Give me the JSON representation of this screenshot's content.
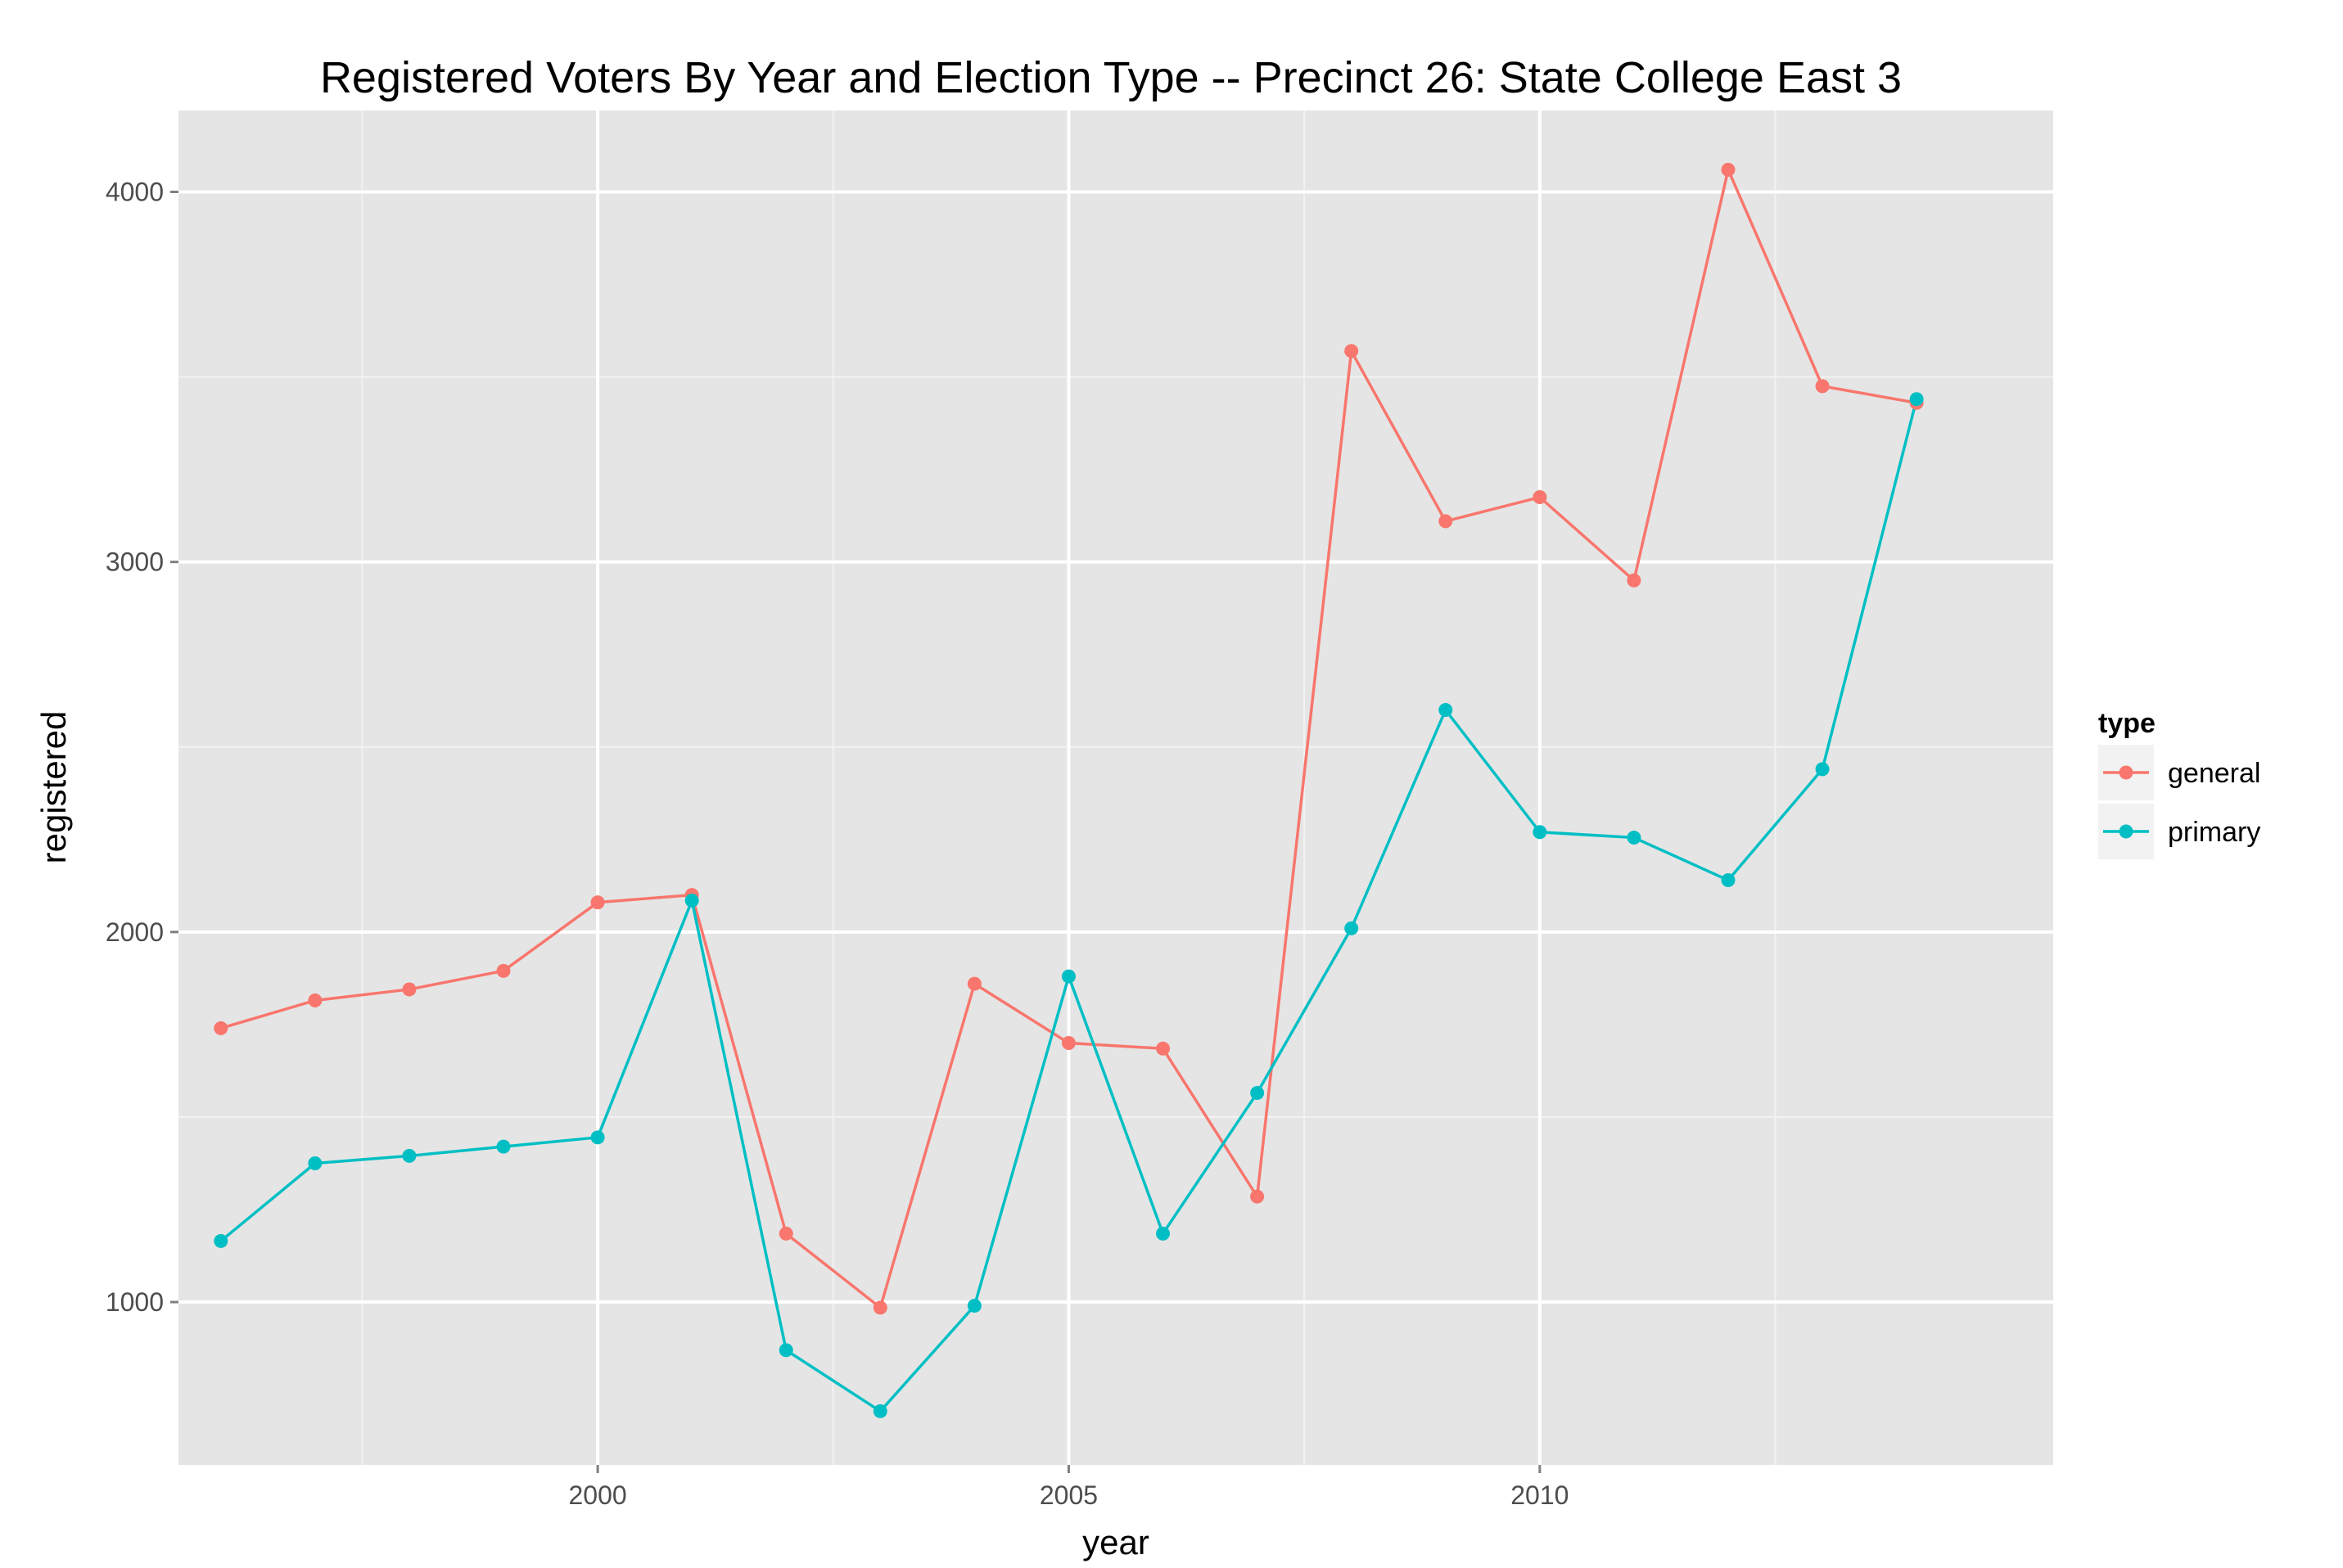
{
  "chart_data": {
    "type": "line",
    "title": "Registered Voters By Year and Election Type -- Precinct 26: State College East 3",
    "xlabel": "year",
    "ylabel": "registered",
    "xlim": [
      1995.55,
      2015.45
    ],
    "ylim": [
      560,
      4220
    ],
    "x_ticks": [
      2000,
      2005,
      2010
    ],
    "x_tick_labels": [
      "2000",
      "2005",
      "2010"
    ],
    "x_minor_ticks": [
      1997.5,
      2002.5,
      2007.5,
      2012.5
    ],
    "y_ticks": [
      1000,
      2000,
      3000,
      4000
    ],
    "y_tick_labels": [
      "1000",
      "2000",
      "3000",
      "4000"
    ],
    "y_minor_ticks": [
      1500,
      2500,
      3500
    ],
    "grid": true,
    "panel_color": "#e5e5e5",
    "legend": {
      "title": "type",
      "position": "right"
    },
    "x": [
      1996,
      1997,
      1998,
      1999,
      2000,
      2001,
      2002,
      2003,
      2004,
      2005,
      2006,
      2007,
      2008,
      2009,
      2010,
      2011,
      2012,
      2013,
      2014
    ],
    "series": [
      {
        "name": "general",
        "color": "#f8766d",
        "values": [
          1740,
          1815,
          1845,
          1895,
          2080,
          2100,
          1185,
          985,
          1860,
          1700,
          1685,
          1285,
          3570,
          3110,
          3175,
          2950,
          4060,
          3475,
          3430
        ]
      },
      {
        "name": "primary",
        "color": "#00bfc4",
        "values": [
          1165,
          1375,
          1395,
          1420,
          1445,
          2085,
          870,
          705,
          990,
          1880,
          1185,
          1565,
          2010,
          2600,
          2270,
          2255,
          2140,
          2440,
          3440
        ]
      }
    ]
  }
}
